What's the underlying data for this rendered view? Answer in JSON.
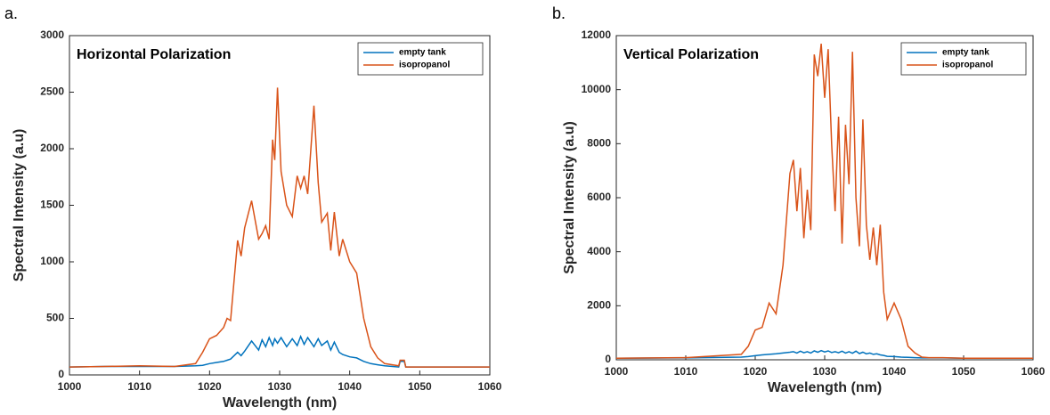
{
  "chart_data": [
    {
      "type": "line",
      "panel_label": "a.",
      "title": "Horizontal Polarization",
      "x_label": "Wavelength (nm)",
      "y_label": "Spectral Intensity (a.u)",
      "x": [
        1000,
        1005,
        1010,
        1015,
        1018,
        1019,
        1020,
        1021,
        1022,
        1022.5,
        1023,
        1024,
        1024.5,
        1025,
        1026,
        1027,
        1027.5,
        1028,
        1028.5,
        1029,
        1029.3,
        1029.7,
        1030.2,
        1031,
        1031.8,
        1032.5,
        1033,
        1033.5,
        1034,
        1034.9,
        1035.5,
        1036,
        1036.8,
        1037.3,
        1037.8,
        1038.5,
        1039,
        1040,
        1041,
        1042,
        1043,
        1044,
        1045,
        1047,
        1047.2,
        1047.8,
        1048,
        1055,
        1060
      ],
      "series": [
        {
          "name": "empty tank",
          "color": "#0072bd",
          "values": [
            70,
            75,
            75,
            75,
            80,
            85,
            100,
            110,
            120,
            130,
            140,
            200,
            170,
            210,
            300,
            220,
            310,
            250,
            330,
            260,
            320,
            280,
            330,
            250,
            320,
            260,
            340,
            270,
            330,
            250,
            320,
            260,
            300,
            220,
            290,
            200,
            180,
            160,
            150,
            120,
            100,
            90,
            80,
            70,
            120,
            120,
            70,
            70,
            70
          ]
        },
        {
          "name": "isopropanol",
          "color": "#d95319",
          "values": [
            70,
            75,
            80,
            75,
            100,
            200,
            320,
            350,
            420,
            500,
            480,
            1190,
            1050,
            1300,
            1540,
            1200,
            1250,
            1320,
            1200,
            2080,
            1900,
            2540,
            1800,
            1500,
            1400,
            1760,
            1650,
            1760,
            1600,
            2380,
            1700,
            1350,
            1430,
            1100,
            1440,
            1050,
            1200,
            1000,
            900,
            500,
            250,
            150,
            100,
            80,
            130,
            130,
            70,
            70,
            70
          ]
        }
      ],
      "xlim": [
        1000,
        1060
      ],
      "xticks": [
        1000,
        1010,
        1020,
        1030,
        1040,
        1050,
        1060
      ],
      "ylim": [
        0,
        3000
      ],
      "yticks": [
        0,
        500,
        1000,
        1500,
        2000,
        2500,
        3000
      ],
      "legend": "upper right"
    },
    {
      "type": "line",
      "panel_label": "b.",
      "title": "Vertical Polarization",
      "x_label": "Wavelength (nm)",
      "y_label": "Spectral Intensity (a.u)",
      "x": [
        1000,
        1010,
        1018,
        1019,
        1020,
        1021,
        1022,
        1023,
        1024,
        1025,
        1025.5,
        1026,
        1026.5,
        1027,
        1027.5,
        1028,
        1028.5,
        1029,
        1029.5,
        1030,
        1030.5,
        1031,
        1031.5,
        1032,
        1032.5,
        1033,
        1033.5,
        1034,
        1034.5,
        1035,
        1035.5,
        1036,
        1036.5,
        1037,
        1037.5,
        1038,
        1038.5,
        1039,
        1040,
        1041,
        1042,
        1043,
        1044,
        1045,
        1047,
        1050,
        1060
      ],
      "series": [
        {
          "name": "empty tank",
          "color": "#0072bd",
          "values": [
            60,
            70,
            100,
            120,
            150,
            180,
            200,
            220,
            250,
            280,
            300,
            250,
            320,
            260,
            300,
            250,
            330,
            280,
            340,
            290,
            330,
            270,
            300,
            260,
            320,
            250,
            300,
            240,
            320,
            230,
            280,
            220,
            250,
            200,
            220,
            180,
            160,
            130,
            120,
            100,
            90,
            80,
            70,
            70,
            70,
            60,
            60
          ]
        },
        {
          "name": "isopropanol",
          "color": "#d95319",
          "values": [
            60,
            80,
            200,
            500,
            1100,
            1200,
            2100,
            1700,
            3500,
            6900,
            7400,
            5500,
            7100,
            4500,
            6300,
            4800,
            11300,
            10500,
            11700,
            9700,
            11500,
            8000,
            5500,
            9000,
            4300,
            8700,
            6500,
            11400,
            6000,
            4200,
            8900,
            5000,
            3700,
            4900,
            3500,
            5000,
            2500,
            1500,
            2100,
            1500,
            500,
            250,
            100,
            80,
            80,
            60,
            60
          ]
        }
      ],
      "xlim": [
        1000,
        1060
      ],
      "xticks": [
        1000,
        1010,
        1020,
        1030,
        1040,
        1050,
        1060
      ],
      "ylim": [
        0,
        12000
      ],
      "yticks": [
        0,
        2000,
        4000,
        6000,
        8000,
        10000,
        12000
      ],
      "legend": "upper right"
    }
  ]
}
